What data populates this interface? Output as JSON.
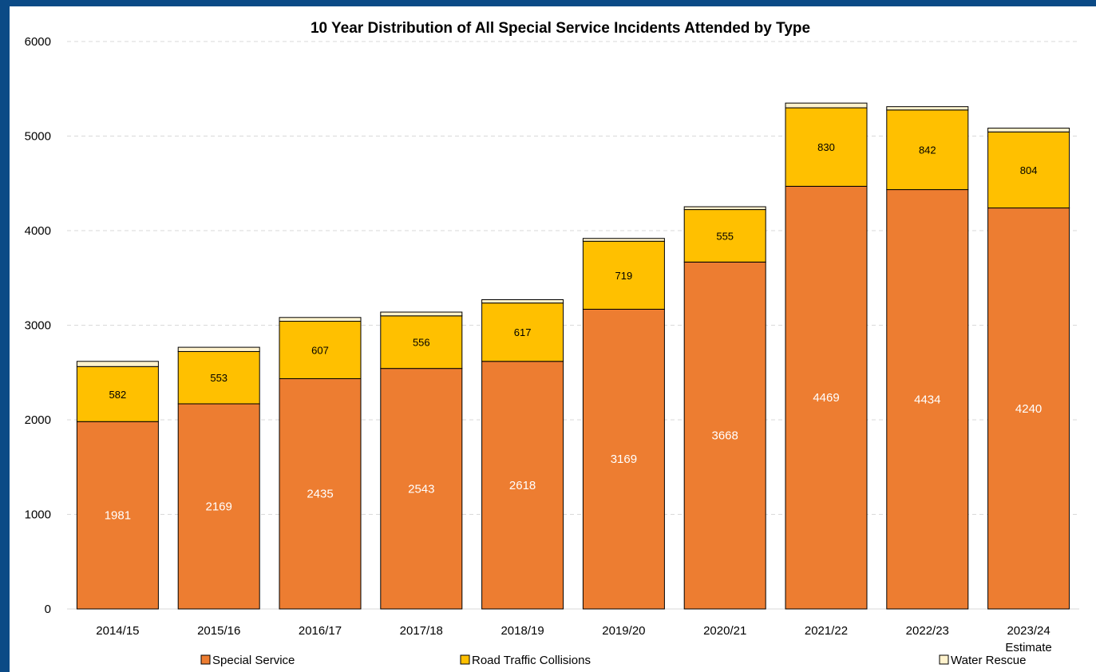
{
  "chart_data": {
    "type": "bar",
    "stacked": true,
    "title": "10 Year Distribution of All Special Service Incidents Attended by Type",
    "xlabel": "",
    "ylabel": "",
    "ylim": [
      0,
      6000
    ],
    "yticks": [
      0,
      1000,
      2000,
      3000,
      4000,
      5000,
      6000
    ],
    "grid": "horizontal-dashed",
    "legend": "bottom",
    "categories": [
      "2014/15",
      "2015/16",
      "2016/17",
      "2017/18",
      "2018/19",
      "2019/20",
      "2020/21",
      "2021/22",
      "2022/23",
      "2023/24 Estimate"
    ],
    "series": [
      {
        "name": "Special Service",
        "color": "#ed7d31",
        "values": [
          1981,
          2169,
          2435,
          2543,
          2618,
          3169,
          3668,
          4469,
          4434,
          4240
        ],
        "data_labels": true
      },
      {
        "name": "Road Traffic Collisions",
        "color": "#ffc000",
        "values": [
          582,
          553,
          607,
          556,
          617,
          719,
          555,
          830,
          842,
          804
        ],
        "data_labels": true
      },
      {
        "name": "Water Rescue",
        "color": "#fff2cc",
        "values": [
          55,
          45,
          40,
          40,
          35,
          30,
          30,
          50,
          35,
          40
        ],
        "data_labels": false
      }
    ]
  }
}
